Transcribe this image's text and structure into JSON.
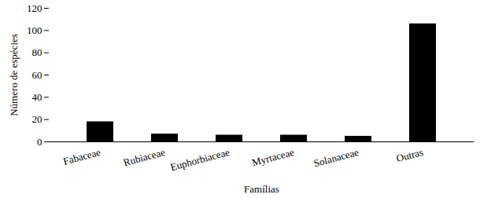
{
  "chart_data": {
    "type": "bar",
    "categories": [
      "Fabaceae",
      "Rubiaceae",
      "Euphorbiaceae",
      "Myrtaceae",
      "Solanaceae",
      "Outras"
    ],
    "values": [
      18,
      7,
      6,
      6,
      5,
      106
    ],
    "color": "#000000",
    "x_label": "Famílias",
    "y_label": "Número de espécies",
    "ylim": [
      0,
      120
    ],
    "yticks": [
      0,
      20,
      40,
      60,
      80,
      100,
      120
    ],
    "grid": false
  }
}
